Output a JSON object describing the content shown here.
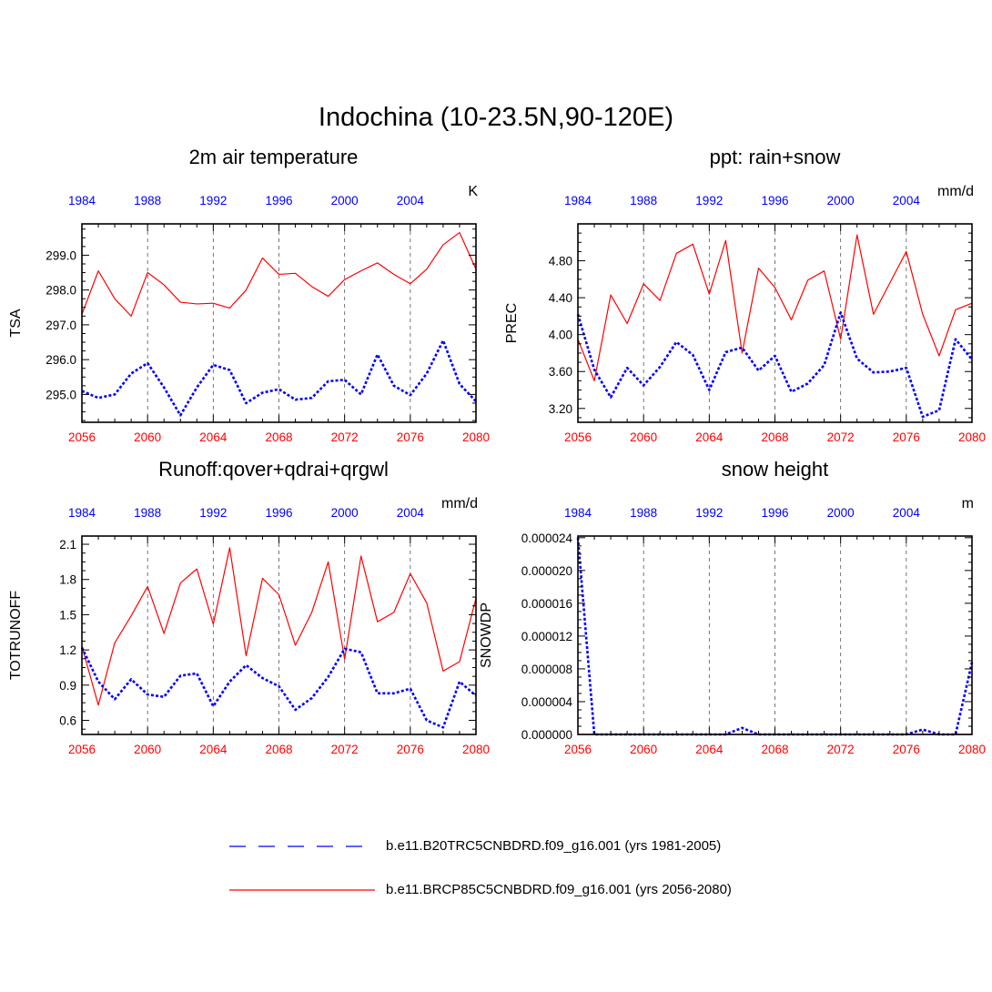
{
  "title": "Indochina (10-23.5N,90-120E)",
  "colors": {
    "future": "#ff0000",
    "historical": "#0000ff",
    "axis": "#000000",
    "grid": "#555555"
  },
  "legend": {
    "historical_label": "b.e11.B20TRC5CNBDRD.f09_g16.001 (yrs 1981-2005)",
    "future_label": "b.e11.BRCP85C5CNBDRD.f09_g16.001 (yrs 2056-2080)"
  },
  "chart_data": [
    {
      "type": "line",
      "title": "2m air temperature",
      "ylabel": "TSA",
      "units": "K",
      "xlim": [
        2056,
        2080
      ],
      "ylim": [
        294.2,
        299.9
      ],
      "bottom_ticks": [
        2056,
        2060,
        2064,
        2068,
        2072,
        2076,
        2080
      ],
      "bottom_tick_labels": [
        "2056",
        "2060",
        "2064",
        "2068",
        "2072",
        "2076",
        "2080"
      ],
      "top_ticks": [
        1984,
        1988,
        1992,
        1996,
        2000,
        2004
      ],
      "top_tick_labels": [
        "1984",
        "1988",
        "1992",
        "1996",
        "2000",
        "2004"
      ],
      "y_ticks": [
        295,
        296,
        297,
        298,
        299
      ],
      "y_tick_labels": [
        "295.0",
        "296.0",
        "297.0",
        "298.0",
        "299.0"
      ],
      "grid_x": [
        2060,
        2064,
        2068,
        2072,
        2076
      ],
      "series": [
        {
          "name": "b.e11.BRCP85C5CNBDRD.f09_g16.001 (yrs 2056-2080)",
          "style": "solid",
          "x": [
            2056,
            2057,
            2058,
            2059,
            2060,
            2061,
            2062,
            2063,
            2064,
            2065,
            2066,
            2067,
            2068,
            2069,
            2070,
            2071,
            2072,
            2073,
            2074,
            2075,
            2076,
            2077,
            2078,
            2079,
            2080
          ],
          "values": [
            297.3,
            298.55,
            297.75,
            297.25,
            298.5,
            298.15,
            297.65,
            297.6,
            297.62,
            297.48,
            298.0,
            298.92,
            298.45,
            298.48,
            298.1,
            297.82,
            298.3,
            298.55,
            298.78,
            298.45,
            298.18,
            298.6,
            299.3,
            299.65,
            298.6
          ]
        },
        {
          "name": "b.e11.B20TRC5CNBDRD.f09_g16.001 (yrs 1981-2005)",
          "style": "dotted",
          "x": [
            2056,
            2057,
            2058,
            2059,
            2060,
            2061,
            2062,
            2063,
            2064,
            2065,
            2066,
            2067,
            2068,
            2069,
            2070,
            2071,
            2072,
            2073,
            2074,
            2075,
            2076,
            2077,
            2078,
            2079,
            2080
          ],
          "values": [
            295.1,
            294.9,
            295.0,
            295.6,
            295.9,
            295.2,
            294.4,
            295.2,
            295.85,
            295.7,
            294.75,
            295.05,
            295.15,
            294.85,
            294.9,
            295.38,
            295.42,
            295.0,
            296.15,
            295.25,
            294.98,
            295.6,
            296.55,
            295.3,
            294.8
          ]
        }
      ]
    },
    {
      "type": "line",
      "title": "ppt: rain+snow",
      "ylabel": "PREC",
      "units": "mm/d",
      "xlim": [
        2056,
        2080
      ],
      "ylim": [
        3.05,
        5.2
      ],
      "bottom_ticks": [
        2056,
        2060,
        2064,
        2068,
        2072,
        2076,
        2080
      ],
      "bottom_tick_labels": [
        "2056",
        "2060",
        "2064",
        "2068",
        "2072",
        "2076",
        "2080"
      ],
      "top_ticks": [
        1984,
        1988,
        1992,
        1996,
        2000,
        2004
      ],
      "top_tick_labels": [
        "1984",
        "1988",
        "1992",
        "1996",
        "2000",
        "2004"
      ],
      "y_ticks": [
        3.2,
        3.6,
        4.0,
        4.4,
        4.8
      ],
      "y_tick_labels": [
        "3.20",
        "3.60",
        "4.00",
        "4.40",
        "4.80"
      ],
      "grid_x": [
        2060,
        2064,
        2068,
        2072,
        2076
      ],
      "series": [
        {
          "name": "b.e11.BRCP85C5CNBDRD.f09_g16.001 (yrs 2056-2080)",
          "style": "solid",
          "x": [
            2056,
            2057,
            2058,
            2059,
            2060,
            2061,
            2062,
            2063,
            2064,
            2065,
            2066,
            2067,
            2068,
            2069,
            2070,
            2071,
            2072,
            2073,
            2074,
            2075,
            2076,
            2077,
            2078,
            2079,
            2080
          ],
          "values": [
            3.95,
            3.5,
            4.43,
            4.12,
            4.55,
            4.37,
            4.88,
            4.98,
            4.44,
            5.02,
            3.8,
            4.72,
            4.51,
            4.16,
            4.59,
            4.69,
            3.95,
            5.08,
            4.22,
            4.56,
            4.9,
            4.22,
            3.77,
            4.27,
            4.34
          ]
        },
        {
          "name": "b.e11.B20TRC5CNBDRD.f09_g16.001 (yrs 1981-2005)",
          "style": "dotted",
          "x": [
            2056,
            2057,
            2058,
            2059,
            2060,
            2061,
            2062,
            2063,
            2064,
            2065,
            2066,
            2067,
            2068,
            2069,
            2070,
            2071,
            2072,
            2073,
            2074,
            2075,
            2076,
            2077,
            2078,
            2079,
            2080
          ],
          "values": [
            4.22,
            3.62,
            3.32,
            3.64,
            3.45,
            3.65,
            3.92,
            3.78,
            3.4,
            3.81,
            3.86,
            3.61,
            3.77,
            3.38,
            3.47,
            3.67,
            4.24,
            3.74,
            3.59,
            3.6,
            3.64,
            3.11,
            3.18,
            3.95,
            3.73
          ]
        }
      ]
    },
    {
      "type": "line",
      "title": "Runoff:qover+qdrai+qrgwl",
      "ylabel": "TOTRUNOFF",
      "units": "mm/d",
      "xlim": [
        2056,
        2080
      ],
      "ylim": [
        0.48,
        2.17
      ],
      "bottom_ticks": [
        2056,
        2060,
        2064,
        2068,
        2072,
        2076,
        2080
      ],
      "bottom_tick_labels": [
        "2056",
        "2060",
        "2064",
        "2068",
        "2072",
        "2076",
        "2080"
      ],
      "top_ticks": [
        1984,
        1988,
        1992,
        1996,
        2000,
        2004
      ],
      "top_tick_labels": [
        "1984",
        "1988",
        "1992",
        "1996",
        "2000",
        "2004"
      ],
      "y_ticks": [
        0.6,
        0.9,
        1.2,
        1.5,
        1.8,
        2.1
      ],
      "y_tick_labels": [
        "0.6",
        "0.9",
        "1.2",
        "1.5",
        "1.8",
        "2.1"
      ],
      "grid_x": [
        2060,
        2064,
        2068,
        2072,
        2076
      ],
      "series": [
        {
          "name": "b.e11.BRCP85C5CNBDRD.f09_g16.001 (yrs 2056-2080)",
          "style": "solid",
          "x": [
            2056,
            2057,
            2058,
            2059,
            2060,
            2061,
            2062,
            2063,
            2064,
            2065,
            2066,
            2067,
            2068,
            2069,
            2070,
            2071,
            2072,
            2073,
            2074,
            2075,
            2076,
            2077,
            2078,
            2079,
            2080
          ],
          "values": [
            1.23,
            0.73,
            1.26,
            1.49,
            1.74,
            1.34,
            1.77,
            1.89,
            1.42,
            2.07,
            1.15,
            1.81,
            1.67,
            1.24,
            1.52,
            1.95,
            1.12,
            2.0,
            1.44,
            1.52,
            1.85,
            1.6,
            1.02,
            1.1,
            1.64
          ]
        },
        {
          "name": "b.e11.B20TRC5CNBDRD.f09_g16.001 (yrs 1981-2005)",
          "style": "dotted",
          "x": [
            2056,
            2057,
            2058,
            2059,
            2060,
            2061,
            2062,
            2063,
            2064,
            2065,
            2066,
            2067,
            2068,
            2069,
            2070,
            2071,
            2072,
            2073,
            2074,
            2075,
            2076,
            2077,
            2078,
            2079,
            2080
          ],
          "values": [
            1.22,
            0.93,
            0.78,
            0.95,
            0.82,
            0.8,
            0.98,
            1.0,
            0.72,
            0.93,
            1.07,
            0.96,
            0.89,
            0.69,
            0.79,
            0.97,
            1.21,
            1.18,
            0.83,
            0.83,
            0.87,
            0.6,
            0.54,
            0.93,
            0.81
          ]
        }
      ]
    },
    {
      "type": "line",
      "title": "snow height",
      "ylabel": "SNOWDP",
      "units": "m",
      "xlim": [
        2056,
        2080
      ],
      "ylim": [
        0,
        2.42e-05
      ],
      "bottom_ticks": [
        2056,
        2060,
        2064,
        2068,
        2072,
        2076,
        2080
      ],
      "bottom_tick_labels": [
        "2056",
        "2060",
        "2064",
        "2068",
        "2072",
        "2076",
        "2080"
      ],
      "top_ticks": [
        1984,
        1988,
        1992,
        1996,
        2000,
        2004
      ],
      "top_tick_labels": [
        "1984",
        "1988",
        "1992",
        "1996",
        "2000",
        "2004"
      ],
      "y_ticks": [
        0,
        4e-06,
        8e-06,
        1.2e-05,
        1.6e-05,
        2e-05,
        2.4e-05
      ],
      "y_tick_labels": [
        "0.000000",
        "0.000004",
        "0.000008",
        "0.000012",
        "0.000016",
        "0.000020",
        "0.000024"
      ],
      "grid_x": [
        2060,
        2064,
        2068,
        2072,
        2076
      ],
      "series": [
        {
          "name": "b.e11.BRCP85C5CNBDRD.f09_g16.001 (yrs 2056-2080)",
          "style": "solid",
          "x": [
            2056,
            2057,
            2058,
            2059,
            2060,
            2061,
            2062,
            2063,
            2064,
            2065,
            2066,
            2067,
            2068,
            2069,
            2070,
            2071,
            2072,
            2073,
            2074,
            2075,
            2076,
            2077,
            2078,
            2079,
            2080
          ],
          "values": [
            0,
            0,
            0,
            0,
            0,
            0,
            0,
            0,
            0,
            0,
            0,
            0,
            0,
            0,
            0,
            0,
            0,
            0,
            0,
            0,
            0,
            0,
            0,
            0,
            0
          ]
        },
        {
          "name": "b.e11.B20TRC5CNBDRD.f09_g16.001 (yrs 1981-2005)",
          "style": "dotted",
          "x": [
            2056,
            2057,
            2058,
            2059,
            2060,
            2061,
            2062,
            2063,
            2064,
            2065,
            2066,
            2067,
            2068,
            2069,
            2070,
            2071,
            2072,
            2073,
            2074,
            2075,
            2076,
            2077,
            2078,
            2079,
            2080
          ],
          "values": [
            2.4e-05,
            0,
            0,
            0,
            0,
            0,
            0,
            0,
            0,
            0,
            8e-07,
            0,
            0,
            0,
            0,
            0,
            0,
            0,
            0,
            0,
            0,
            6e-07,
            0,
            0,
            8.8e-06
          ]
        }
      ]
    }
  ]
}
